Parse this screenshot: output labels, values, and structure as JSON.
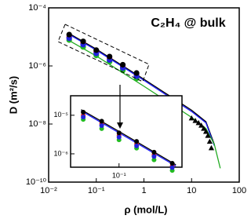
{
  "chart_data": [
    {
      "type": "scatter",
      "title": "C₂H₄ @ bulk",
      "x_label": "ρ (mol/L)",
      "y_label": "D (m²/s)",
      "log_x": true,
      "log_y": true,
      "xlim": [
        0.01,
        100
      ],
      "ylim": [
        1e-10,
        0.0001
      ],
      "xticks": [
        {
          "value": 0.01,
          "label": "10⁻²"
        },
        {
          "value": 0.1,
          "label": "10⁻¹"
        },
        1,
        10,
        100
      ],
      "yticks": [
        {
          "value": 1e-10,
          "label": "10⁻¹⁰"
        },
        {
          "value": 1e-08,
          "label": "10⁻⁸"
        },
        {
          "value": 1e-06,
          "label": "10⁻⁶"
        },
        {
          "value": 0.0001,
          "label": "10⁻⁴"
        }
      ],
      "series": [
        {
          "marker": "line",
          "color": "#000000",
          "x": [
            0.025,
            0.1,
            1,
            10,
            20,
            30
          ],
          "values": [
            1.4e-05,
            3.8e-06,
            3.5e-07,
            3e-08,
            1.2e-08,
            2e-09
          ]
        },
        {
          "marker": "line",
          "color": "#1a1aff",
          "x": [
            0.025,
            0.1,
            1,
            10,
            20,
            30
          ],
          "values": [
            1.3e-05,
            3.5e-06,
            3.2e-07,
            2.7e-08,
            1.1e-08,
            1.8e-09
          ]
        },
        {
          "marker": "line",
          "color": "#22aa22",
          "x": [
            0.025,
            0.1,
            1,
            10,
            20,
            30,
            40
          ],
          "values": [
            8e-06,
            2.2e-06,
            2e-07,
            1.7e-08,
            7e-09,
            2e-09,
            3e-10
          ]
        },
        {
          "marker": "circle",
          "color": "#22bb22",
          "x": [
            0.027,
            0.053,
            0.1,
            0.19,
            0.36,
            0.7
          ],
          "values": [
            7.8e-06,
            4.5e-06,
            2.3e-06,
            1.4e-06,
            7e-07,
            3.7e-07
          ]
        },
        {
          "marker": "circle",
          "color": "#dd2222",
          "x": [
            0.027,
            0.053,
            0.1,
            0.19,
            0.36,
            0.7
          ],
          "values": [
            1e-05,
            6e-06,
            3e-06,
            1.8e-06,
            9.4e-07,
            4.8e-07
          ]
        },
        {
          "marker": "circle",
          "color": "#2222dd",
          "x": [
            0.027,
            0.053,
            0.1,
            0.19,
            0.36,
            0.7
          ],
          "values": [
            9e-06,
            5.4e-06,
            2.7e-06,
            1.6e-06,
            8.5e-07,
            4.4e-07
          ]
        },
        {
          "marker": "circle",
          "color": "#000000",
          "x": [
            0.027,
            0.053,
            0.1,
            0.19,
            0.36,
            0.7
          ],
          "values": [
            1.2e-05,
            7e-06,
            3.5e-06,
            2.1e-06,
            1.1e-06,
            5.7e-07
          ]
        },
        {
          "marker": "triangle",
          "color": "#000000",
          "x": [
            10,
            12,
            14,
            16,
            18,
            20,
            22,
            24,
            26
          ],
          "values": [
            1.6e-08,
            1.3e-08,
            1.1e-08,
            9e-09,
            7e-09,
            5.5e-09,
            4e-09,
            2.5e-09,
            1.5e-09
          ]
        }
      ]
    },
    {
      "type": "scatter",
      "log_x": true,
      "log_y": true,
      "xlim": [
        0.017,
        1
      ],
      "ylim": [
        4.5e-07,
        3.2e-05
      ],
      "xticks": [
        {
          "value": 0.1,
          "label": "10⁻¹"
        }
      ],
      "yticks": [
        {
          "value": 1e-06,
          "label": "10⁻⁶"
        },
        {
          "value": 1e-05,
          "label": "10⁻⁵"
        }
      ],
      "series": [
        {
          "marker": "line",
          "color": "#000000",
          "x": [
            0.025,
            0.1,
            0.8
          ],
          "values": [
            1.4e-05,
            3.8e-06,
            5.2e-07
          ]
        },
        {
          "marker": "line",
          "color": "#1a1aff",
          "x": [
            0.025,
            0.1,
            0.8
          ],
          "values": [
            1.3e-05,
            3.5e-06,
            4.8e-07
          ]
        },
        {
          "marker": "circle",
          "color": "#22bb22",
          "x": [
            0.027,
            0.053,
            0.1,
            0.19,
            0.36,
            0.7
          ],
          "values": [
            7.8e-06,
            4.5e-06,
            2.3e-06,
            1.4e-06,
            7e-07,
            3.7e-07
          ]
        },
        {
          "marker": "circle",
          "color": "#dd2222",
          "x": [
            0.027,
            0.053,
            0.1,
            0.19,
            0.36,
            0.7
          ],
          "values": [
            1e-05,
            6e-06,
            3e-06,
            1.8e-06,
            9.4e-07,
            4.8e-07
          ]
        },
        {
          "marker": "circle",
          "color": "#2222dd",
          "x": [
            0.027,
            0.053,
            0.1,
            0.19,
            0.36,
            0.7
          ],
          "values": [
            9e-06,
            5.4e-06,
            2.7e-06,
            1.6e-06,
            8.5e-07,
            4.4e-07
          ]
        },
        {
          "marker": "circle",
          "color": "#000000",
          "x": [
            0.027,
            0.053,
            0.1,
            0.19,
            0.36,
            0.7
          ],
          "values": [
            1.2e-05,
            7e-06,
            3.5e-06,
            2.1e-06,
            1.1e-06,
            5.7e-07
          ]
        }
      ]
    }
  ]
}
